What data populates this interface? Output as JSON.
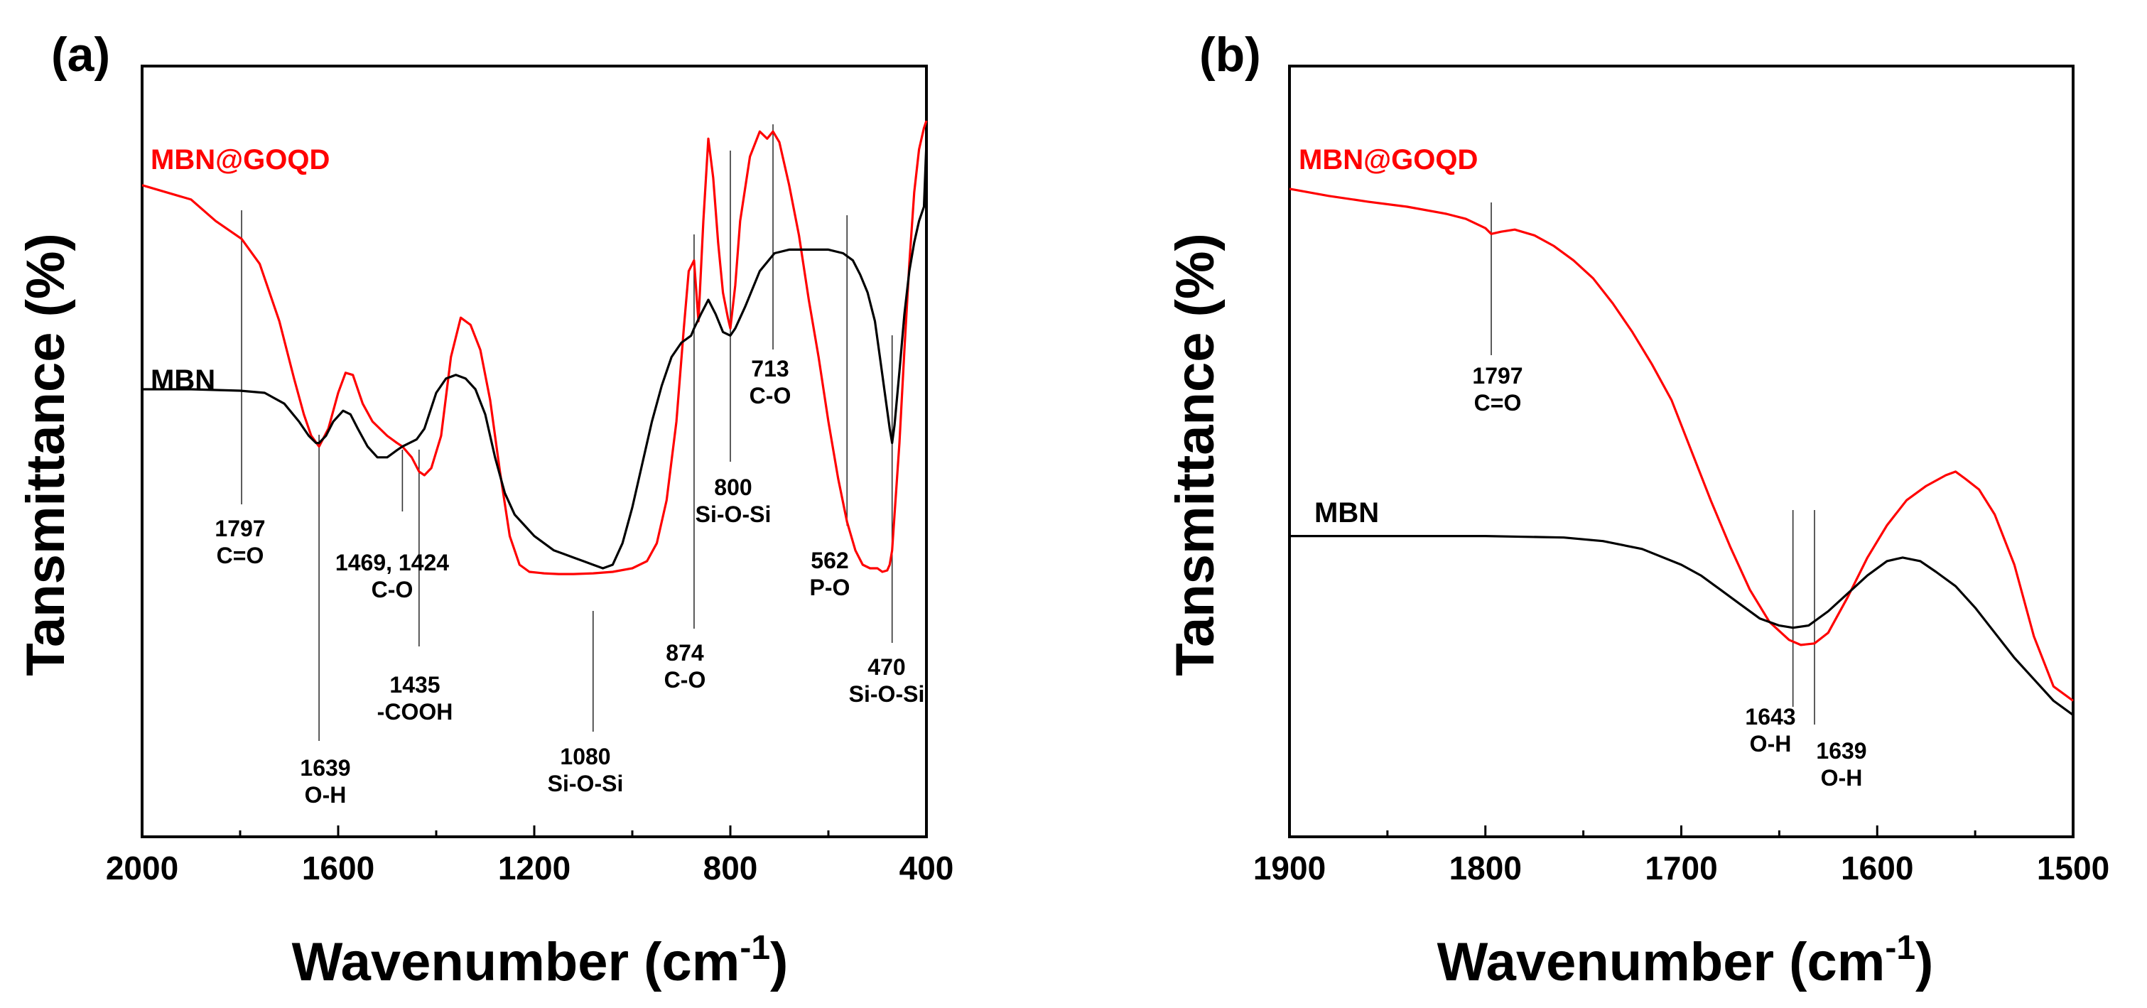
{
  "chart_data": [
    {
      "panel": "(a)",
      "type": "line",
      "xlabel": "Wavenumber (cm-1)",
      "xlabel_main": "Wavenumber (cm",
      "xlabel_sup": "-1",
      "xlabel_close": ")",
      "ylabel": "Tansmittance (%)",
      "xlim": [
        2000,
        400
      ],
      "ylim": [
        0,
        100
      ],
      "xticks": [
        2000,
        1600,
        1200,
        800,
        400
      ],
      "grid": false,
      "colors": {
        "MBN@GOQD": "#ff0000",
        "MBN": "#000000"
      },
      "series": [
        {
          "name": "MBN@GOQD",
          "x": [
            2000,
            1900,
            1850,
            1797,
            1760,
            1720,
            1690,
            1670,
            1655,
            1639,
            1620,
            1600,
            1585,
            1570,
            1550,
            1530,
            1500,
            1480,
            1469,
            1450,
            1435,
            1424,
            1410,
            1390,
            1370,
            1350,
            1330,
            1310,
            1290,
            1270,
            1250,
            1230,
            1210,
            1180,
            1150,
            1120,
            1080,
            1040,
            1000,
            970,
            950,
            930,
            910,
            895,
            885,
            874,
            865,
            855,
            845,
            835,
            825,
            815,
            805,
            800,
            790,
            780,
            760,
            740,
            725,
            713,
            700,
            680,
            660,
            640,
            620,
            600,
            580,
            562,
            545,
            530,
            515,
            500,
            490,
            480,
            475,
            470,
            465,
            455,
            445,
            435,
            425,
            415,
            405,
            400
          ],
          "y": [
            91,
            89,
            86,
            83.5,
            80,
            72,
            64,
            59,
            56,
            54.5,
            57,
            62,
            64.8,
            64.5,
            60.5,
            58,
            56,
            55,
            54.5,
            53,
            51,
            50.5,
            51.5,
            56,
            67,
            72.5,
            71.5,
            68,
            61,
            51,
            42,
            38,
            37,
            36.8,
            36.7,
            36.7,
            36.8,
            37,
            37.5,
            38.5,
            41,
            47,
            58,
            71,
            79,
            80.5,
            72,
            86,
            97.5,
            92,
            83,
            76,
            72.5,
            71,
            77,
            86,
            95,
            98.5,
            97.5,
            98.5,
            97,
            91,
            84,
            75,
            67,
            58,
            50,
            44,
            40,
            38,
            37.5,
            37.5,
            37,
            37.2,
            38,
            40,
            45,
            55,
            68,
            80,
            90,
            96,
            99,
            100
          ]
        },
        {
          "name": "MBN",
          "x": [
            2000,
            1900,
            1800,
            1750,
            1710,
            1680,
            1660,
            1645,
            1639,
            1625,
            1610,
            1590,
            1575,
            1560,
            1540,
            1520,
            1500,
            1480,
            1469,
            1440,
            1424,
            1400,
            1380,
            1360,
            1340,
            1320,
            1300,
            1280,
            1260,
            1240,
            1220,
            1200,
            1180,
            1160,
            1140,
            1120,
            1100,
            1080,
            1060,
            1040,
            1020,
            1000,
            980,
            960,
            940,
            920,
            900,
            880,
            874,
            860,
            845,
            830,
            815,
            800,
            790,
            770,
            740,
            710,
            680,
            640,
            600,
            570,
            550,
            535,
            520,
            505,
            495,
            485,
            475,
            470,
            465,
            455,
            445,
            435,
            425,
            415,
            405,
            400
          ],
          "y": [
            62.5,
            62.5,
            62.3,
            62,
            60.5,
            58,
            56,
            55,
            55,
            56,
            58,
            59.5,
            59,
            57,
            54.5,
            53,
            53,
            54,
            54.5,
            55.5,
            57,
            62,
            64,
            64.5,
            64,
            62.5,
            59,
            53,
            48,
            45,
            43.5,
            42,
            41,
            40,
            39.5,
            39,
            38.5,
            38,
            37.5,
            38,
            41,
            46,
            52,
            58,
            63,
            67,
            69,
            70,
            71,
            73,
            75,
            73,
            70.5,
            70,
            71,
            74,
            79,
            81.5,
            82,
            82,
            82,
            81.5,
            80.5,
            78.5,
            76,
            72,
            67,
            62,
            57,
            55,
            57.5,
            65,
            73,
            79,
            83,
            86,
            88,
            97
          ]
        }
      ],
      "annotations": [
        {
          "x": 1797,
          "lines": [
            "1797",
            "C=O"
          ]
        },
        {
          "x": 1639,
          "lines": [
            "1639",
            "O-H"
          ]
        },
        {
          "x": 1469,
          "lines": [
            "1469, 1424",
            "C-O"
          ]
        },
        {
          "x": 1435,
          "lines": [
            "1435",
            "-COOH"
          ]
        },
        {
          "x": 1080,
          "lines": [
            "1080",
            "Si-O-Si"
          ]
        },
        {
          "x": 874,
          "lines": [
            "874",
            "C-O"
          ]
        },
        {
          "x": 800,
          "lines": [
            "800",
            "Si-O-Si"
          ]
        },
        {
          "x": 713,
          "lines": [
            "713",
            "C-O"
          ]
        },
        {
          "x": 562,
          "lines": [
            "562",
            "P-O"
          ]
        },
        {
          "x": 470,
          "lines": [
            "470",
            "Si-O-Si"
          ]
        }
      ]
    },
    {
      "panel": "(b)",
      "type": "line",
      "xlabel": "Wavenumber (cm-1)",
      "xlabel_main": "Wavenumber (cm",
      "xlabel_sup": "-1",
      "xlabel_close": ")",
      "ylabel": "Tansmittance (%)",
      "xlim": [
        1900,
        1500
      ],
      "ylim": [
        0,
        100
      ],
      "xticks": [
        1900,
        1800,
        1700,
        1600,
        1500
      ],
      "grid": false,
      "colors": {
        "MBN@GOQD": "#ff0000",
        "MBN": "#000000"
      },
      "series": [
        {
          "name": "MBN@GOQD",
          "x": [
            1900,
            1880,
            1860,
            1840,
            1820,
            1810,
            1800,
            1797,
            1792,
            1785,
            1775,
            1765,
            1755,
            1745,
            1735,
            1725,
            1715,
            1705,
            1695,
            1685,
            1675,
            1665,
            1655,
            1645,
            1639,
            1632,
            1625,
            1615,
            1605,
            1595,
            1585,
            1575,
            1565,
            1560,
            1555,
            1548,
            1540,
            1530,
            1520,
            1510,
            1500
          ],
          "y": [
            90.5,
            89.5,
            88.7,
            88,
            87,
            86.3,
            85,
            84.2,
            84.5,
            84.8,
            84,
            82.5,
            80.5,
            78,
            74.5,
            70.5,
            66,
            61,
            54,
            47,
            40.5,
            34.5,
            30,
            27.5,
            26.8,
            27,
            28.5,
            33.5,
            39,
            43.5,
            47,
            49,
            50.5,
            51,
            50,
            48.5,
            45,
            38,
            28,
            21,
            19
          ]
        },
        {
          "name": "MBN",
          "x": [
            1900,
            1850,
            1800,
            1760,
            1740,
            1720,
            1700,
            1690,
            1680,
            1670,
            1660,
            1650,
            1643,
            1635,
            1625,
            1615,
            1605,
            1595,
            1587,
            1578,
            1570,
            1560,
            1550,
            1540,
            1530,
            1520,
            1510,
            1500
          ],
          "y": [
            42,
            42,
            42,
            41.8,
            41.3,
            40.2,
            38,
            36.5,
            34.5,
            32.5,
            30.5,
            29.5,
            29.2,
            29.5,
            31.5,
            34,
            36.5,
            38.5,
            39,
            38.5,
            37,
            35,
            32,
            28.5,
            25,
            22,
            19,
            17
          ]
        }
      ],
      "annotations": [
        {
          "x": 1797,
          "lines": [
            "1797",
            "C=O"
          ]
        },
        {
          "x": 1643,
          "lines": [
            "1643",
            "O-H"
          ]
        },
        {
          "x": 1632,
          "lines": [
            "1639",
            "O-H"
          ]
        }
      ]
    }
  ]
}
